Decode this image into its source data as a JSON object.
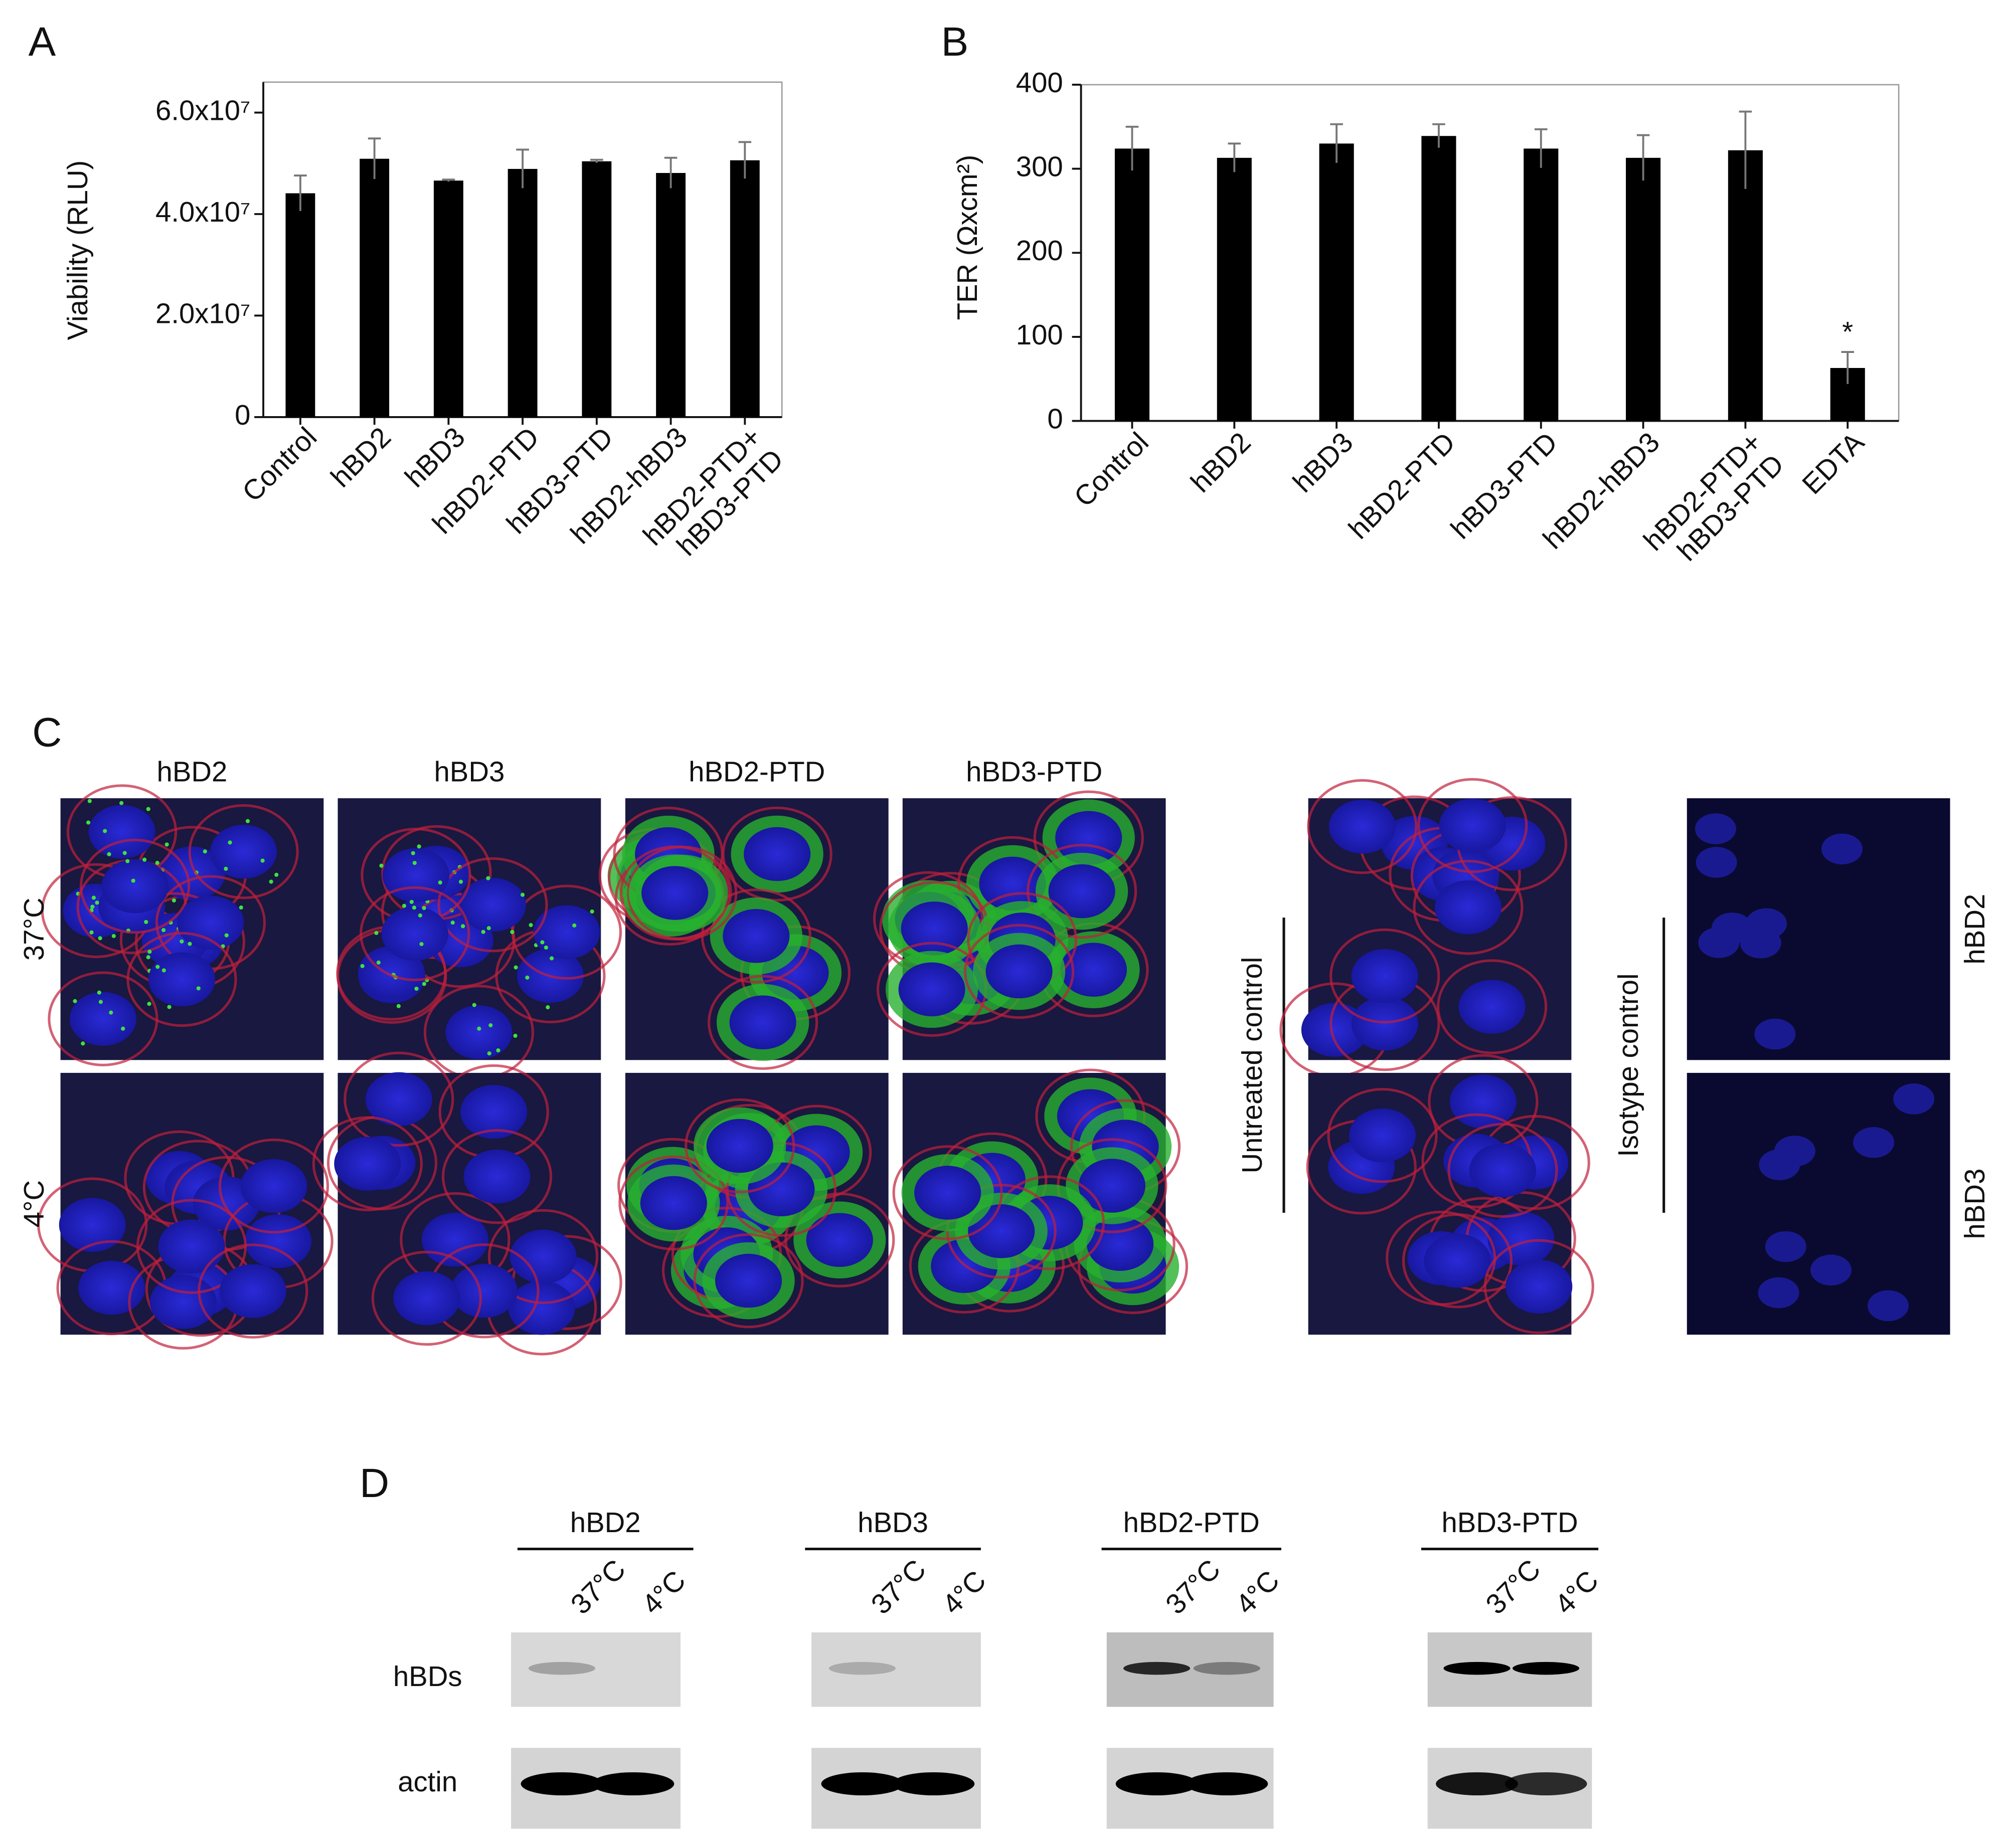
{
  "panel_labels": [
    "A",
    "B",
    "C",
    "D"
  ],
  "chart_data": [
    {
      "type": "bar",
      "ylabel": "Viability (RLU)",
      "color": "#000000",
      "categories": [
        "Control",
        "hBD2",
        "hBD3",
        "hBD2-PTD",
        "hBD3-PTD",
        "hBD2-hBD3",
        "hBD2-PTD+\nhBD3-PTD"
      ],
      "values": [
        44100000,
        50900000,
        46600000,
        48900000,
        50400000,
        48100000,
        50600000
      ],
      "errors": [
        3500000,
        4000000,
        200000,
        3800000,
        300000,
        3000000,
        3600000
      ],
      "ylim": [
        0,
        66000000
      ],
      "yticks": [
        0,
        {
          "value": 20000000,
          "label": "2.0x10⁷"
        },
        {
          "value": 40000000,
          "label": "4.0x10⁷"
        },
        {
          "value": 60000000,
          "label": "6.0x10⁷"
        }
      ]
    },
    {
      "type": "bar",
      "ylabel": "TER (Ωxcm²)",
      "color": "#000000",
      "categories": [
        "Control",
        "hBD2",
        "hBD3",
        "hBD2-PTD",
        "hBD3-PTD",
        "hBD2-hBD3",
        "hBD2-PTD+\nhBD3-PTD",
        "EDTA"
      ],
      "values": [
        324,
        313,
        330,
        339,
        324,
        313,
        322,
        63
      ],
      "errors": [
        26,
        17,
        23,
        14,
        23,
        27,
        46,
        19
      ],
      "annotation": "*",
      "ylim": [
        0,
        400
      ],
      "yticks": [
        0,
        100,
        200,
        300,
        400
      ]
    }
  ],
  "microscopy": {
    "columns": [
      "hBD2",
      "hBD3",
      "hBD2-PTD",
      "hBD3-PTD"
    ],
    "rows": [
      "37°C",
      "4°C"
    ],
    "untreated_label": "Untreated control",
    "isotype_label": "Isotype control",
    "isotype_rows": [
      "hBD2",
      "hBD3"
    ]
  },
  "western": {
    "groups": [
      {
        "name": "hBD2",
        "lanes": [
          "37°C",
          "4°C"
        ]
      },
      {
        "name": "hBD3",
        "lanes": [
          "37°C",
          "4°C"
        ]
      },
      {
        "name": "hBD2-PTD",
        "lanes": [
          "37°C",
          "4°C"
        ]
      },
      {
        "name": "hBD3-PTD",
        "lanes": [
          "37°C",
          "4°C"
        ]
      }
    ],
    "rows": [
      "hBDs",
      "actin"
    ]
  }
}
